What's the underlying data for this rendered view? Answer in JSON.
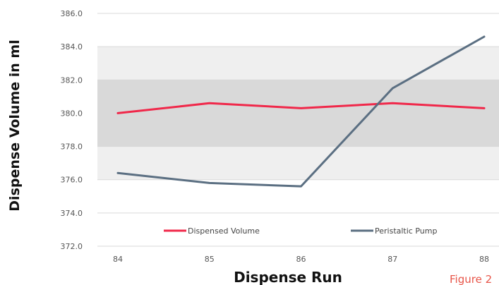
{
  "chart_data": {
    "type": "line",
    "xlabel": "Dispense Run",
    "ylabel": "Dispense Volume in ml",
    "categories": [
      "84",
      "85",
      "86",
      "87",
      "88"
    ],
    "ylim": [
      372.0,
      386.0
    ],
    "yticks": [
      "372.0",
      "374.0",
      "376.0",
      "378.0",
      "380.0",
      "382.0",
      "384.0",
      "386.0"
    ],
    "grid": true,
    "legend_position": "bottom-inside",
    "bands": [
      {
        "from": 376.0,
        "to": 384.0,
        "color": "#efefef"
      },
      {
        "from": 378.0,
        "to": 382.0,
        "color": "#d9d9d9"
      }
    ],
    "series": [
      {
        "name": "Dispensed Volume",
        "color": "#f0284a",
        "values": [
          380.0,
          380.6,
          380.3,
          380.6,
          380.3
        ]
      },
      {
        "name": "Peristaltic Pump",
        "color": "#5b6f82",
        "values": [
          376.4,
          375.8,
          375.6,
          381.5,
          384.6
        ]
      }
    ]
  },
  "figure_label": "Figure 2"
}
